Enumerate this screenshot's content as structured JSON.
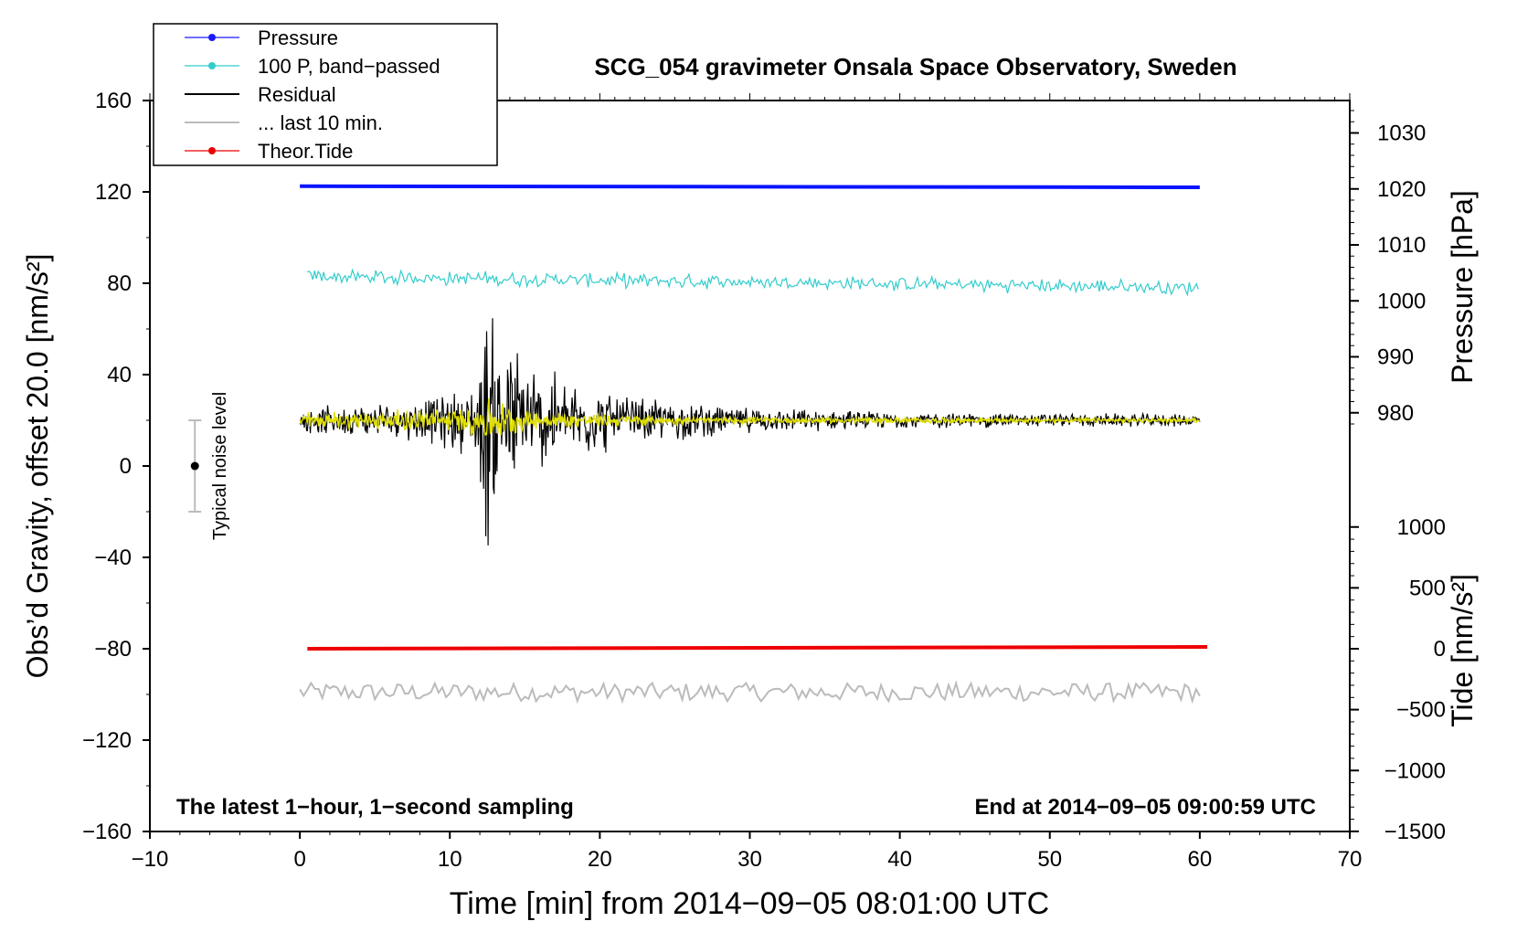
{
  "chart_data": {
    "type": "line",
    "title": "SCG_054 gravimeter Onsala Space Observatory, Sweden",
    "xlabel": "Time [min] from 2014−09−05 08:01:00 UTC",
    "ylabel": "Obs’d Gravity, offset 20.0 [nm/s²]",
    "ylabel_right_top": "Pressure [hPa]",
    "ylabel_right_bottom": "Tide [nm/s²]",
    "xlim": [
      -10,
      70
    ],
    "ylim": [
      -160,
      160
    ],
    "xticks": [
      -10,
      0,
      10,
      20,
      30,
      40,
      50,
      60,
      70
    ],
    "yticks": [
      -160,
      -120,
      -80,
      -40,
      0,
      40,
      80,
      120,
      160
    ],
    "x_tick_labels": [
      "−10",
      "0",
      "10",
      "20",
      "30",
      "40",
      "50",
      "60",
      "70"
    ],
    "y_tick_labels": [
      "−160",
      "−120",
      "−80",
      "−40",
      "0",
      "40",
      "80",
      "120",
      "160"
    ],
    "pressure_axis": {
      "ticks": [
        980,
        990,
        1000,
        1010,
        1020,
        1030
      ],
      "tick_labels": [
        "980",
        "990",
        "1000",
        "1010",
        "1020",
        "1030"
      ],
      "gravity_at_980": 23.3,
      "gravity_per_hpa": 2.45
    },
    "tide_axis": {
      "ticks": [
        -1500,
        -1000,
        -500,
        0,
        500,
        1000
      ],
      "tick_labels": [
        "−1500",
        "−1000",
        "−500",
        "0",
        "500",
        "1000"
      ],
      "gravity_at_0": -80,
      "gravity_per_unit": 0.0533
    },
    "legend": {
      "placement": "top-left",
      "entries": [
        {
          "label": "Pressure",
          "color": "#1a1aff",
          "marker": true
        },
        {
          "label": "100 P, band−passed",
          "color": "#33cccc",
          "marker": true
        },
        {
          "label": "Residual",
          "color": "#000000",
          "marker": false
        },
        {
          "label": "... last 10 min.",
          "color": "#bbbbbb",
          "marker": false
        },
        {
          "label": "Theor.Tide",
          "color": "#ee0000",
          "marker": true
        }
      ]
    },
    "series": [
      {
        "name": "Pressure",
        "color": "#0a14ff",
        "x": [
          0,
          60
        ],
        "y": [
          122.5,
          122
        ]
      },
      {
        "name": "100 P, band-passed",
        "color": "#33cccc",
        "x_range": [
          0.5,
          60
        ],
        "baseline": [
          83,
          78
        ],
        "noise_amplitude": 3
      },
      {
        "name": "Residual",
        "color": "#000000",
        "x_range": [
          0,
          60
        ],
        "baseline": 20,
        "envelope": [
          {
            "x": 0,
            "amp": 6
          },
          {
            "x": 7,
            "amp": 9
          },
          {
            "x": 10,
            "amp": 14
          },
          {
            "x": 11.8,
            "amp": 18
          },
          {
            "x": 12.4,
            "amp": 65
          },
          {
            "x": 13.2,
            "amp": 50
          },
          {
            "x": 15,
            "amp": 30
          },
          {
            "x": 18,
            "amp": 20
          },
          {
            "x": 22,
            "amp": 12
          },
          {
            "x": 30,
            "amp": 6
          },
          {
            "x": 40,
            "amp": 4
          },
          {
            "x": 60,
            "amp": 3
          }
        ]
      },
      {
        "name": "Residual, smoothed",
        "color": "#e0e000",
        "x_range": [
          0,
          60
        ],
        "baseline": 20,
        "envelope": [
          {
            "x": 0,
            "amp": 4
          },
          {
            "x": 11,
            "amp": 6
          },
          {
            "x": 12.5,
            "amp": 12
          },
          {
            "x": 15,
            "amp": 5
          },
          {
            "x": 25,
            "amp": 2
          },
          {
            "x": 60,
            "amp": 1
          }
        ]
      },
      {
        "name": "... last 10 min.",
        "color": "#bbbbbb",
        "x_range": [
          0,
          60
        ],
        "baseline": -99,
        "noise_amplitude": 4
      },
      {
        "name": "Theor.Tide",
        "color": "#ee0000",
        "x": [
          0.5,
          60.5
        ],
        "y": [
          -80,
          -79.2
        ]
      }
    ],
    "noise_bar": {
      "label": "Typical noise level",
      "x": -7,
      "center": 0,
      "low": -20,
      "high": 20
    },
    "annotation_left": "The latest 1−hour, 1−second sampling",
    "annotation_right": "End at 2014−09−05 09:00:59 UTC"
  }
}
